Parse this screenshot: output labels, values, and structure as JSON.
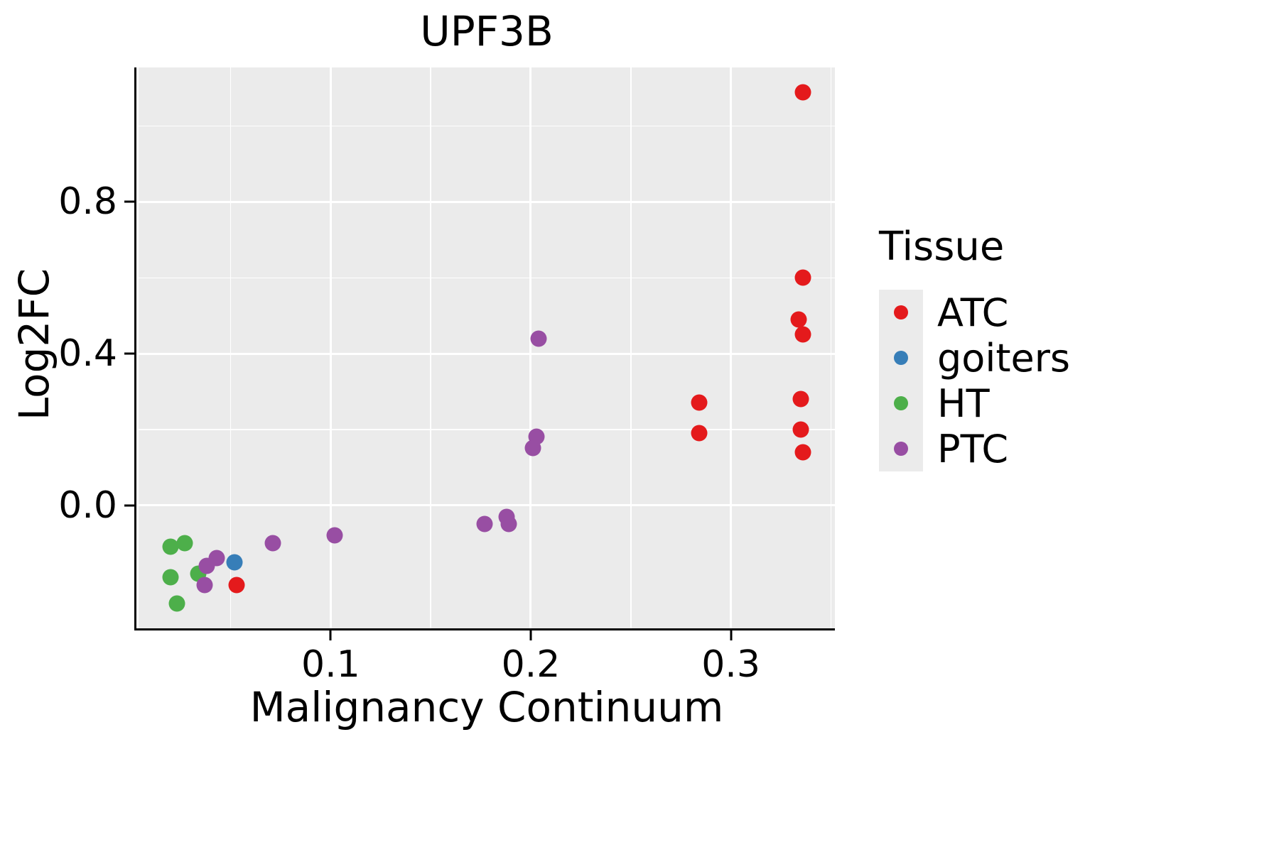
{
  "title": "UPF3B",
  "x_axis_label": "Malignancy Continuum",
  "y_axis_label": "Log2FC",
  "legend": {
    "title": "Tissue",
    "items": [
      {
        "label": "ATC",
        "color": "#E41A1C"
      },
      {
        "label": "goiters",
        "color": "#377EB8"
      },
      {
        "label": "HT",
        "color": "#4DAF4A"
      },
      {
        "label": "PTC",
        "color": "#984EA3"
      }
    ]
  },
  "style": {
    "panel_background": "#EBEBEB",
    "gridline_color": "#FFFFFF",
    "axis_color": "#000000"
  },
  "chart_data": {
    "type": "scatter",
    "title": "UPF3B",
    "xlabel": "Malignancy Continuum",
    "ylabel": "Log2FC",
    "grid": true,
    "legend_position": "right",
    "xlim": [
      0.004,
      0.352
    ],
    "ylim": [
      -0.325,
      1.155
    ],
    "x_ticks": [
      {
        "v": 0.1,
        "label": "0.1"
      },
      {
        "v": 0.2,
        "label": "0.2"
      },
      {
        "v": 0.3,
        "label": "0.3"
      }
    ],
    "x_minor_ticks": [
      0.05,
      0.15,
      0.25,
      0.35
    ],
    "y_ticks": [
      {
        "v": 0.0,
        "label": "0.0"
      },
      {
        "v": 0.4,
        "label": "0.4"
      },
      {
        "v": 0.8,
        "label": "0.8"
      }
    ],
    "y_minor_ticks": [
      0.2,
      0.6,
      1.0
    ],
    "series": [
      {
        "name": "ATC",
        "color": "#E41A1C",
        "points": [
          [
            0.336,
            1.09
          ],
          [
            0.336,
            0.6
          ],
          [
            0.334,
            0.49
          ],
          [
            0.336,
            0.45
          ],
          [
            0.335,
            0.28
          ],
          [
            0.335,
            0.2
          ],
          [
            0.336,
            0.14
          ],
          [
            0.284,
            0.27
          ],
          [
            0.284,
            0.19
          ],
          [
            0.053,
            -0.21
          ]
        ]
      },
      {
        "name": "goiters",
        "color": "#377EB8",
        "points": [
          [
            0.052,
            -0.15
          ]
        ]
      },
      {
        "name": "HT",
        "color": "#4DAF4A",
        "points": [
          [
            0.02,
            -0.11
          ],
          [
            0.027,
            -0.1
          ],
          [
            0.02,
            -0.19
          ],
          [
            0.034,
            -0.18
          ],
          [
            0.023,
            -0.26
          ]
        ]
      },
      {
        "name": "PTC",
        "color": "#984EA3",
        "points": [
          [
            0.204,
            0.44
          ],
          [
            0.203,
            0.18
          ],
          [
            0.201,
            0.15
          ],
          [
            0.177,
            -0.05
          ],
          [
            0.188,
            -0.03
          ],
          [
            0.189,
            -0.05
          ],
          [
            0.102,
            -0.08
          ],
          [
            0.071,
            -0.1
          ],
          [
            0.043,
            -0.14
          ],
          [
            0.038,
            -0.16
          ],
          [
            0.037,
            -0.21
          ]
        ]
      }
    ]
  }
}
